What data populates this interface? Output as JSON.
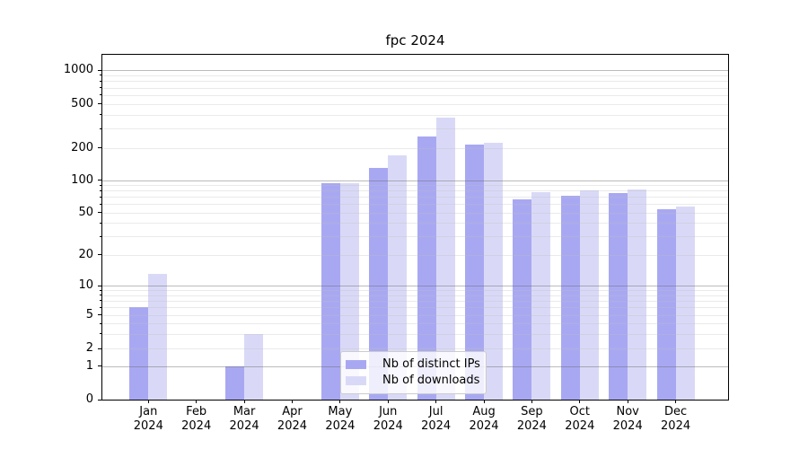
{
  "title": "fpc 2024",
  "chart_data": {
    "type": "bar",
    "title": "fpc 2024",
    "categories": [
      "Jan 2024",
      "Feb 2024",
      "Mar 2024",
      "Apr 2024",
      "May 2024",
      "Jun 2024",
      "Jul 2024",
      "Aug 2024",
      "Sep 2024",
      "Oct 2024",
      "Nov 2024",
      "Dec 2024"
    ],
    "series": [
      {
        "name": "Nb of distinct IPs",
        "color": "#a8a8f2",
        "values": [
          6,
          0,
          1,
          0,
          93,
          130,
          255,
          215,
          66,
          72,
          76,
          54
        ]
      },
      {
        "name": "Nb of downloads",
        "color": "#d9d9f7",
        "values": [
          13,
          0,
          3,
          0,
          94,
          170,
          375,
          225,
          78,
          80,
          82,
          57
        ]
      }
    ],
    "xlabel": "",
    "ylabel": "",
    "yscale": "symlog",
    "ylim": [
      0,
      1400
    ],
    "grid": true,
    "legend_position": "lower center"
  },
  "x_axis": {
    "months": [
      "Jan",
      "Feb",
      "Mar",
      "Apr",
      "May",
      "Jun",
      "Jul",
      "Aug",
      "Sep",
      "Oct",
      "Nov",
      "Dec"
    ],
    "year": "2024"
  },
  "y_axis": {
    "tick_labels": [
      "0",
      "1",
      "2",
      "5",
      "10",
      "20",
      "50",
      "100",
      "200",
      "500",
      "1000"
    ],
    "tick_values": [
      0,
      1,
      2,
      5,
      10,
      20,
      50,
      100,
      200,
      500,
      1000
    ]
  },
  "colors": {
    "bar_dark": "#a8a8f2",
    "bar_light": "#d9d9f7",
    "grid_major": "#6a6a6a",
    "grid_minor": "#cfcfcf",
    "axis": "#000000"
  }
}
